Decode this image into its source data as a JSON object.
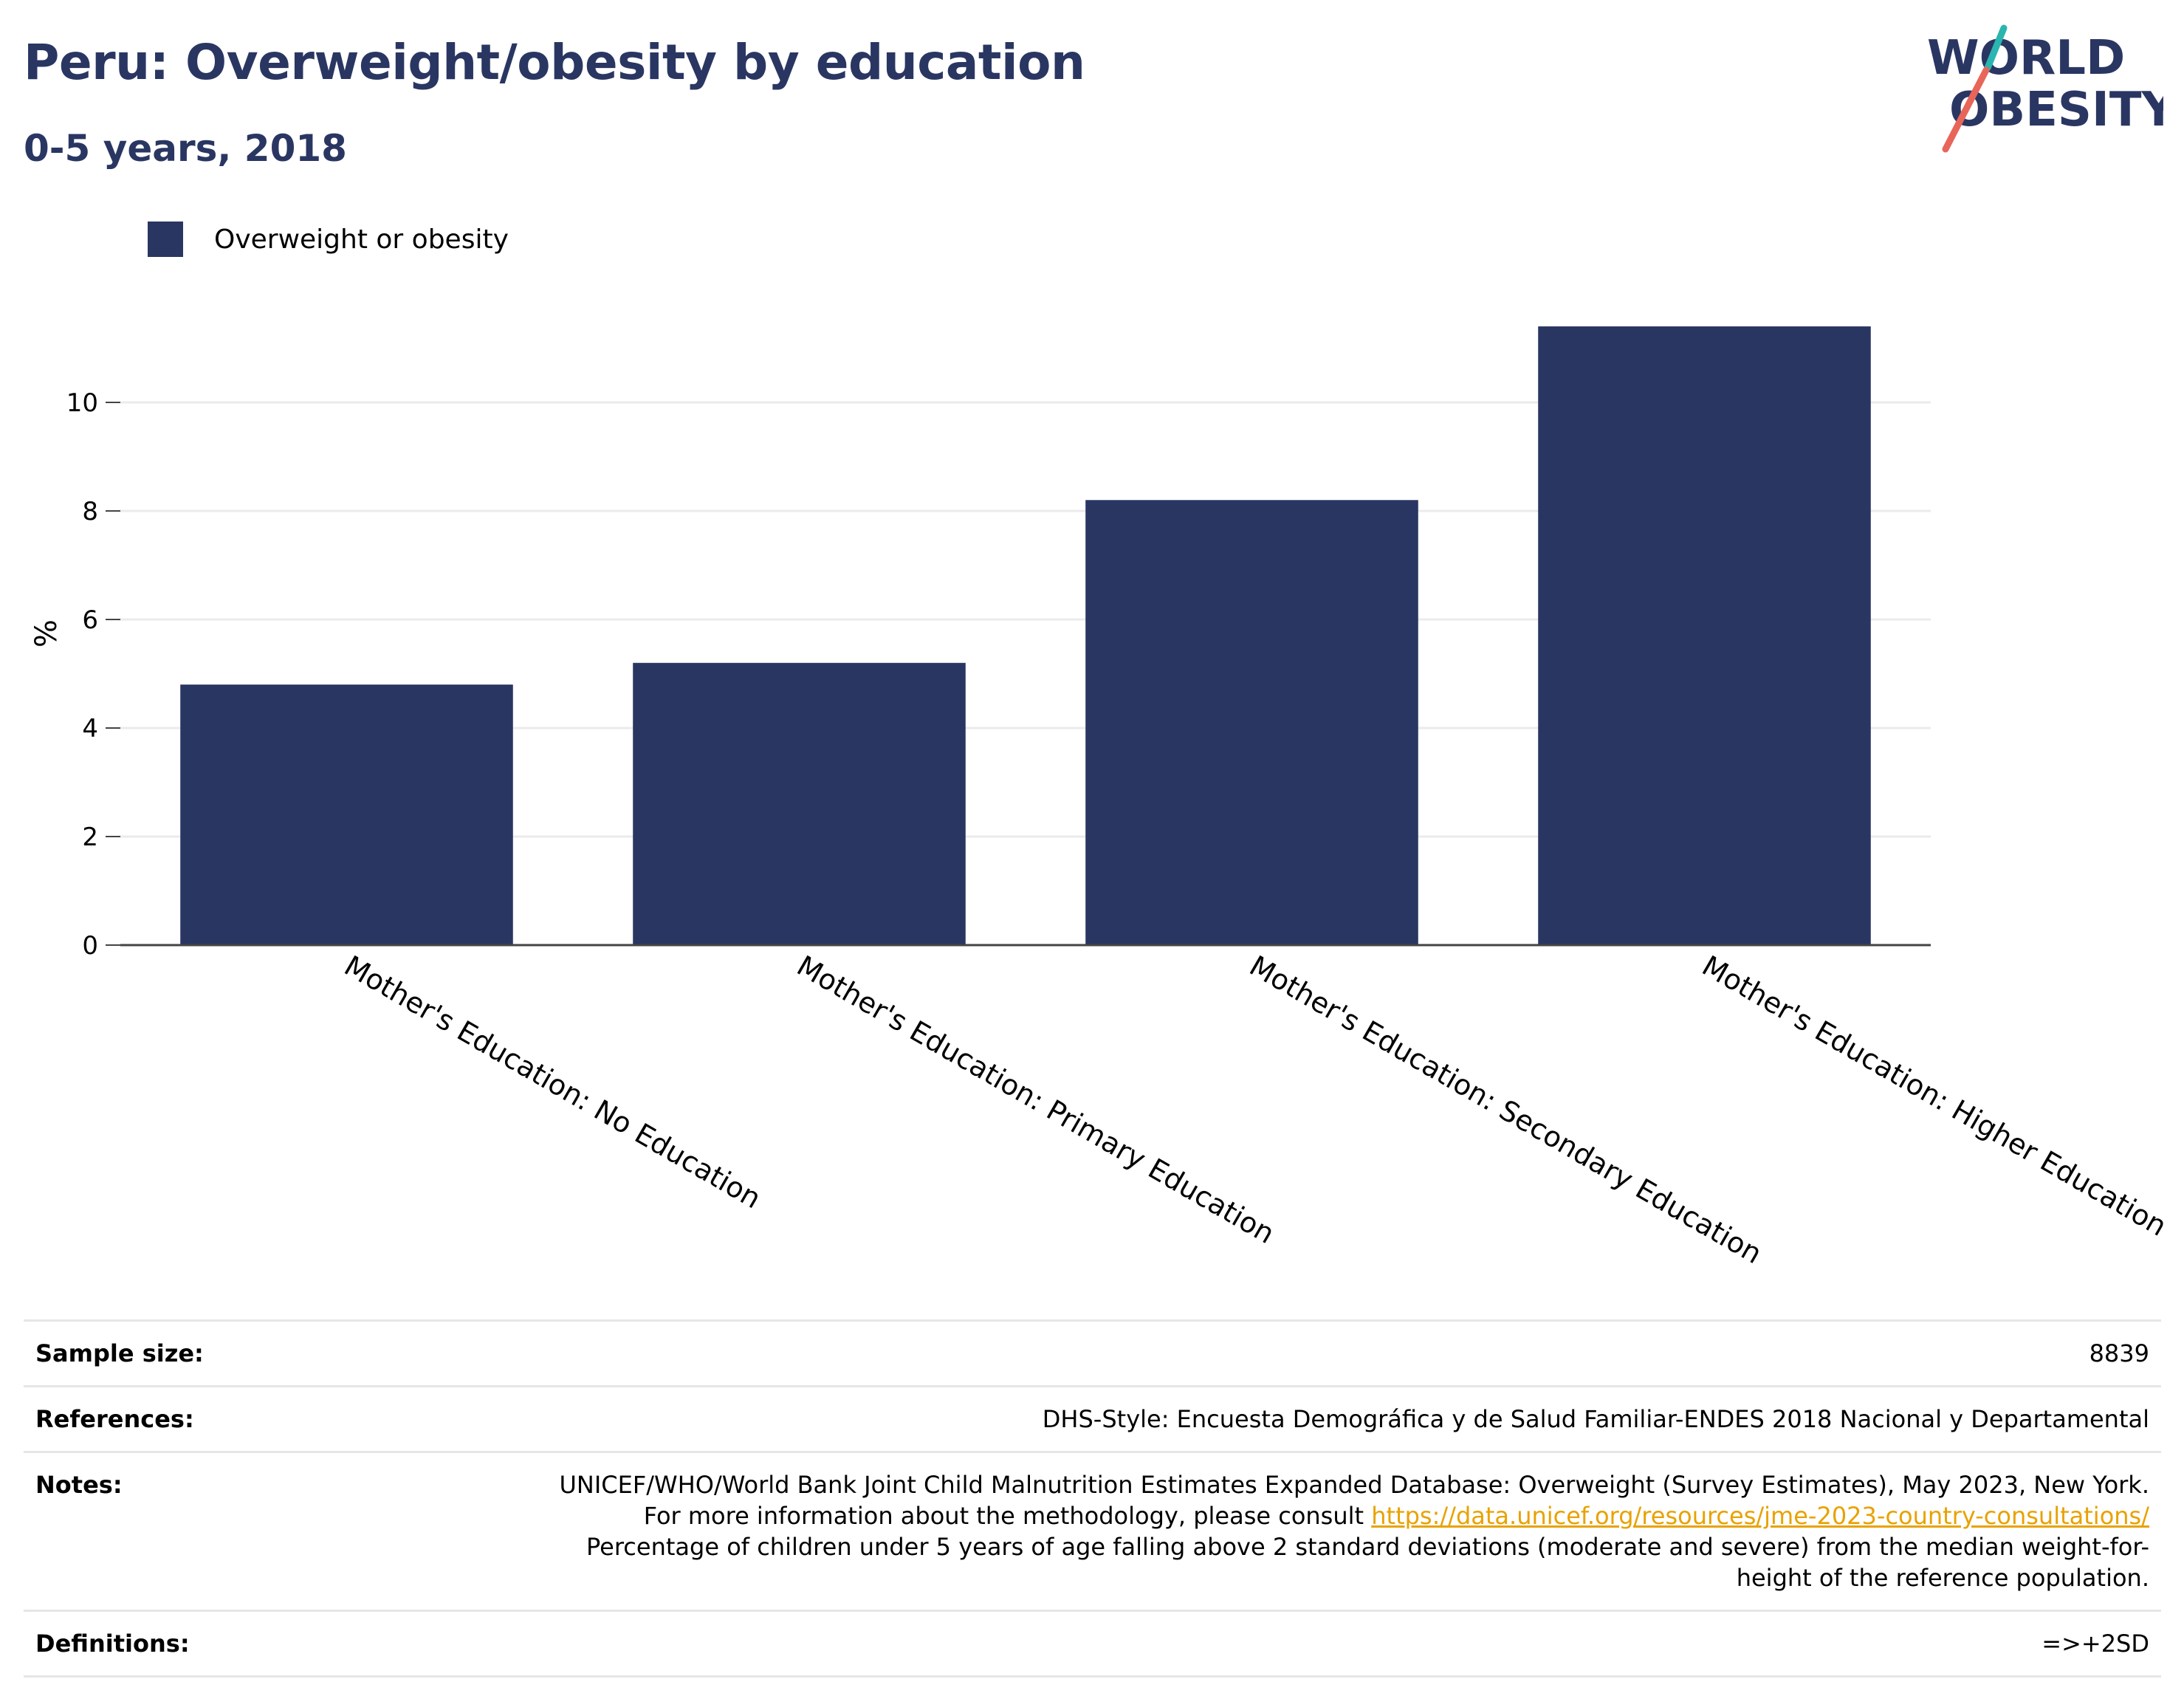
{
  "header": {
    "title": "Peru: Overweight/obesity by education",
    "subtitle": "0-5 years, 2018"
  },
  "logo": {
    "line1": "WORLD",
    "line2": "OBESITY",
    "slash_top_color": "#2bb5b0",
    "slash_bottom_color": "#e8655a",
    "text_color": "#2a3662"
  },
  "colors": {
    "bar": "#2a3662",
    "gridline": "#ebebeb",
    "axis": "#444444",
    "link": "#e8a200"
  },
  "chart_data": {
    "type": "bar",
    "categories": [
      "Mother's Education: No Education",
      "Mother's Education: Primary Education",
      "Mother's Education: Secondary Education",
      "Mother's Education: Higher Education"
    ],
    "series": [
      {
        "name": "Overweight or obesity",
        "values": [
          4.8,
          5.2,
          8.2,
          11.4
        ]
      }
    ],
    "ylabel": "%",
    "xlabel": "",
    "yticks": [
      0,
      2,
      4,
      6,
      8,
      10
    ],
    "ylim": [
      0,
      11.7
    ],
    "grid": true,
    "legend": "top-left"
  },
  "meta": {
    "sample_size_label": "Sample size:",
    "sample_size": "8839",
    "references_label": "References:",
    "references": "DHS-Style: Encuesta Demográfica y de Salud Familiar-ENDES 2018 Nacional y Departamental",
    "notes_label": "Notes:",
    "notes_part1": "UNICEF/WHO/World Bank Joint Child Malnutrition Estimates Expanded Database: Overweight (Survey Estimates), May 2023, New York. For more information about the methodology, please consult ",
    "notes_link": "https://data.unicef.org/resources/jme-2023-country-consultations/",
    "notes_part2": "Percentage of children under 5 years of age falling above 2 standard deviations (moderate and severe) from the median weight-for-height of the reference population.",
    "definitions_label": "Definitions:",
    "definitions": "=>+2SD"
  }
}
